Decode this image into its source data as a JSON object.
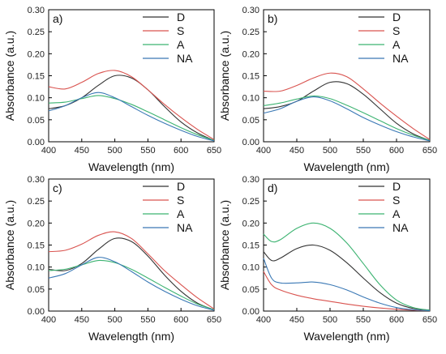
{
  "chart_data": [
    {
      "type": "line",
      "panel_label": "a)",
      "xlabel": "Wavelength (nm)",
      "ylabel": "Absorbance (a.u.)",
      "xlim": [
        400,
        650
      ],
      "ylim": [
        0,
        0.3
      ],
      "xticks": [
        "400",
        "450",
        "500",
        "550",
        "600",
        "650"
      ],
      "yticks": [
        "0.00",
        "0.05",
        "0.10",
        "0.15",
        "0.20",
        "0.25",
        "0.30"
      ],
      "legend_position": "top-right",
      "x": [
        400,
        425,
        450,
        475,
        500,
        525,
        550,
        575,
        600,
        625,
        650
      ],
      "series": [
        {
          "name": "D",
          "color": "#333333",
          "values": [
            0.075,
            0.082,
            0.1,
            0.128,
            0.15,
            0.145,
            0.118,
            0.08,
            0.045,
            0.02,
            0.003
          ]
        },
        {
          "name": "S",
          "color": "#d9534f",
          "values": [
            0.125,
            0.12,
            0.135,
            0.155,
            0.162,
            0.148,
            0.118,
            0.085,
            0.055,
            0.028,
            0.005
          ]
        },
        {
          "name": "A",
          "color": "#3cb371",
          "values": [
            0.088,
            0.09,
            0.098,
            0.105,
            0.098,
            0.085,
            0.068,
            0.05,
            0.032,
            0.016,
            0.003
          ]
        },
        {
          "name": "NA",
          "color": "#3a78b5",
          "values": [
            0.07,
            0.082,
            0.1,
            0.112,
            0.1,
            0.08,
            0.06,
            0.042,
            0.026,
            0.012,
            0.002
          ]
        }
      ]
    },
    {
      "type": "line",
      "panel_label": "b)",
      "xlabel": "Wavelength (nm)",
      "ylabel": "Absorbance (a.u.)",
      "xlim": [
        400,
        650
      ],
      "ylim": [
        0,
        0.3
      ],
      "xticks": [
        "400",
        "450",
        "500",
        "550",
        "600",
        "650"
      ],
      "yticks": [
        "0.00",
        "0.05",
        "0.10",
        "0.15",
        "0.20",
        "0.25",
        "0.30"
      ],
      "legend_position": "top-right",
      "x": [
        400,
        425,
        450,
        475,
        500,
        525,
        550,
        575,
        600,
        625,
        650
      ],
      "series": [
        {
          "name": "D",
          "color": "#333333",
          "values": [
            0.075,
            0.08,
            0.092,
            0.115,
            0.135,
            0.132,
            0.108,
            0.075,
            0.042,
            0.018,
            0.003
          ]
        },
        {
          "name": "S",
          "color": "#d9534f",
          "values": [
            0.115,
            0.115,
            0.128,
            0.145,
            0.156,
            0.148,
            0.12,
            0.088,
            0.058,
            0.03,
            0.005
          ]
        },
        {
          "name": "A",
          "color": "#3cb371",
          "values": [
            0.082,
            0.088,
            0.097,
            0.104,
            0.098,
            0.083,
            0.066,
            0.048,
            0.03,
            0.015,
            0.003
          ]
        },
        {
          "name": "NA",
          "color": "#3a78b5",
          "values": [
            0.065,
            0.075,
            0.092,
            0.102,
            0.093,
            0.075,
            0.055,
            0.038,
            0.023,
            0.011,
            0.002
          ]
        }
      ]
    },
    {
      "type": "line",
      "panel_label": "c)",
      "xlabel": "Wavelength (nm)",
      "ylabel": "Absorbance (a.u.)",
      "xlim": [
        400,
        650
      ],
      "ylim": [
        0,
        0.3
      ],
      "xticks": [
        "400",
        "450",
        "500",
        "550",
        "600",
        "650"
      ],
      "yticks": [
        "0.00",
        "0.05",
        "0.10",
        "0.15",
        "0.20",
        "0.25",
        "0.30"
      ],
      "legend_position": "top-right",
      "x": [
        400,
        425,
        450,
        475,
        500,
        525,
        550,
        575,
        600,
        625,
        650
      ],
      "series": [
        {
          "name": "D",
          "color": "#333333",
          "values": [
            0.095,
            0.092,
            0.108,
            0.14,
            0.165,
            0.158,
            0.125,
            0.082,
            0.045,
            0.018,
            0.003
          ]
        },
        {
          "name": "S",
          "color": "#d9534f",
          "values": [
            0.135,
            0.138,
            0.152,
            0.172,
            0.18,
            0.165,
            0.13,
            0.092,
            0.06,
            0.03,
            0.005
          ]
        },
        {
          "name": "A",
          "color": "#3cb371",
          "values": [
            0.092,
            0.095,
            0.105,
            0.115,
            0.11,
            0.095,
            0.075,
            0.054,
            0.034,
            0.016,
            0.003
          ]
        },
        {
          "name": "NA",
          "color": "#3a78b5",
          "values": [
            0.075,
            0.085,
            0.105,
            0.122,
            0.112,
            0.09,
            0.066,
            0.045,
            0.027,
            0.012,
            0.002
          ]
        }
      ]
    },
    {
      "type": "line",
      "panel_label": "d)",
      "xlabel": "Wavelength (nm)",
      "ylabel": "Absorbance (a.u.)",
      "xlim": [
        400,
        650
      ],
      "ylim": [
        0,
        0.3
      ],
      "xticks": [
        "400",
        "450",
        "500",
        "550",
        "600",
        "650"
      ],
      "yticks": [
        "0.00",
        "0.05",
        "0.10",
        "0.15",
        "0.20",
        "0.25",
        "0.30"
      ],
      "legend_position": "top-right",
      "x": [
        400,
        412,
        425,
        450,
        475,
        500,
        525,
        550,
        575,
        600,
        625,
        650
      ],
      "series": [
        {
          "name": "D",
          "color": "#333333",
          "values": [
            0.135,
            0.115,
            0.12,
            0.142,
            0.15,
            0.138,
            0.11,
            0.075,
            0.042,
            0.018,
            0.006,
            0.002
          ]
        },
        {
          "name": "S",
          "color": "#d9534f",
          "values": [
            0.09,
            0.06,
            0.048,
            0.036,
            0.028,
            0.022,
            0.016,
            0.011,
            0.007,
            0.004,
            0.002,
            0.001
          ]
        },
        {
          "name": "A",
          "color": "#3cb371",
          "values": [
            0.175,
            0.158,
            0.162,
            0.188,
            0.2,
            0.188,
            0.155,
            0.108,
            0.06,
            0.025,
            0.008,
            0.002
          ]
        },
        {
          "name": "NA",
          "color": "#3a78b5",
          "values": [
            0.12,
            0.075,
            0.064,
            0.064,
            0.066,
            0.06,
            0.048,
            0.032,
            0.018,
            0.008,
            0.003,
            0.001
          ]
        }
      ]
    }
  ]
}
